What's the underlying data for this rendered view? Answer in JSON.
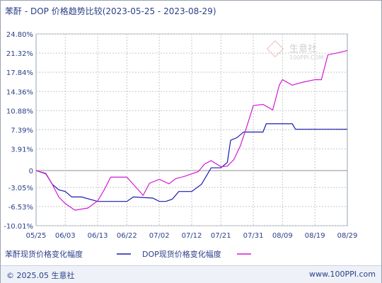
{
  "title": "苯酐 - DOP 价格趋势比较(2023-05-25 - 2023-08-29)",
  "footer": {
    "copyright": "© 2025.05 生意社",
    "website": "www.100PPI.com"
  },
  "watermark": {
    "text": "生意社",
    "subtext": "100PPI.COM"
  },
  "colors": {
    "series1": "#1a1ab0",
    "series2": "#d21ad2",
    "axis_text": "#2a3f86",
    "grid": "#c8c8c8"
  },
  "chart_data": {
    "type": "line",
    "title": "苯酐 - DOP 价格趋势比较(2023-05-25 - 2023-08-29)",
    "xlabel": "",
    "ylabel": "",
    "x_ticks": [
      "05/25",
      "06/03",
      "06/13",
      "06/22",
      "07/02",
      "07/12",
      "07/21",
      "07/31",
      "08/09",
      "08/19",
      "08/29"
    ],
    "y_ticks": [
      "24.80%",
      "21.32%",
      "17.84%",
      "14.36%",
      "10.88%",
      "7.39%",
      "3.91%",
      "0",
      "-3.05%",
      "-6.53%",
      "-10.01%"
    ],
    "y_tick_values": [
      24.8,
      21.32,
      17.84,
      14.36,
      10.88,
      7.39,
      3.91,
      0,
      -3.05,
      -6.53,
      -10.01
    ],
    "ylim": [
      -10.01,
      24.8
    ],
    "x_range": [
      "2023-05-25",
      "2023-08-29"
    ],
    "grid": true,
    "legend_position": "bottom-left",
    "series": [
      {
        "name": "苯酐现货价格变化幅度",
        "color": "#1a1ab0",
        "points": [
          [
            "05/25",
            0
          ],
          [
            "05/28",
            -0.6
          ],
          [
            "05/30",
            -2.5
          ],
          [
            "06/01",
            -3.5
          ],
          [
            "06/03",
            -3.8
          ],
          [
            "06/05",
            -4.8
          ],
          [
            "06/08",
            -4.8
          ],
          [
            "06/13",
            -5.6
          ],
          [
            "06/15",
            -5.6
          ],
          [
            "06/20",
            -5.6
          ],
          [
            "06/22",
            -5.6
          ],
          [
            "06/24",
            -4.8
          ],
          [
            "06/30",
            -5.0
          ],
          [
            "07/02",
            -5.6
          ],
          [
            "07/04",
            -5.6
          ],
          [
            "07/06",
            -5.2
          ],
          [
            "07/08",
            -3.8
          ],
          [
            "07/12",
            -3.8
          ],
          [
            "07/15",
            -2.5
          ],
          [
            "07/18",
            0.5
          ],
          [
            "07/21",
            0.5
          ],
          [
            "07/23",
            1.5
          ],
          [
            "07/24",
            5.5
          ],
          [
            "07/26",
            6.0
          ],
          [
            "07/28",
            7.0
          ],
          [
            "07/31",
            7.0
          ],
          [
            "08/03",
            7.0
          ],
          [
            "08/04",
            8.5
          ],
          [
            "08/09",
            8.5
          ],
          [
            "08/12",
            8.5
          ],
          [
            "08/13",
            7.5
          ],
          [
            "08/19",
            7.5
          ],
          [
            "08/29",
            7.5
          ]
        ]
      },
      {
        "name": "DOP现货价格变化幅度",
        "color": "#d21ad2",
        "points": [
          [
            "05/25",
            0
          ],
          [
            "05/28",
            -0.5
          ],
          [
            "05/30",
            -2.5
          ],
          [
            "06/01",
            -4.8
          ],
          [
            "06/03",
            -6.0
          ],
          [
            "06/06",
            -7.2
          ],
          [
            "06/10",
            -6.8
          ],
          [
            "06/13",
            -5.5
          ],
          [
            "06/15",
            -3.5
          ],
          [
            "06/17",
            -1.2
          ],
          [
            "06/22",
            -1.2
          ],
          [
            "06/24",
            -2.5
          ],
          [
            "06/27",
            -4.5
          ],
          [
            "06/29",
            -2.3
          ],
          [
            "07/02",
            -1.6
          ],
          [
            "07/05",
            -2.4
          ],
          [
            "07/07",
            -1.5
          ],
          [
            "07/10",
            -1.0
          ],
          [
            "07/14",
            -0.2
          ],
          [
            "07/16",
            1.2
          ],
          [
            "07/18",
            1.8
          ],
          [
            "07/21",
            0.7
          ],
          [
            "07/23",
            0.8
          ],
          [
            "07/25",
            2.0
          ],
          [
            "07/27",
            4.5
          ],
          [
            "07/29",
            8.0
          ],
          [
            "07/31",
            11.8
          ],
          [
            "08/03",
            12.0
          ],
          [
            "08/06",
            11.0
          ],
          [
            "08/08",
            15.5
          ],
          [
            "08/09",
            16.5
          ],
          [
            "08/12",
            15.5
          ],
          [
            "08/15",
            16.0
          ],
          [
            "08/19",
            16.5
          ],
          [
            "08/21",
            16.5
          ],
          [
            "08/23",
            21.0
          ],
          [
            "08/27",
            21.5
          ],
          [
            "08/29",
            21.8
          ]
        ]
      }
    ]
  }
}
